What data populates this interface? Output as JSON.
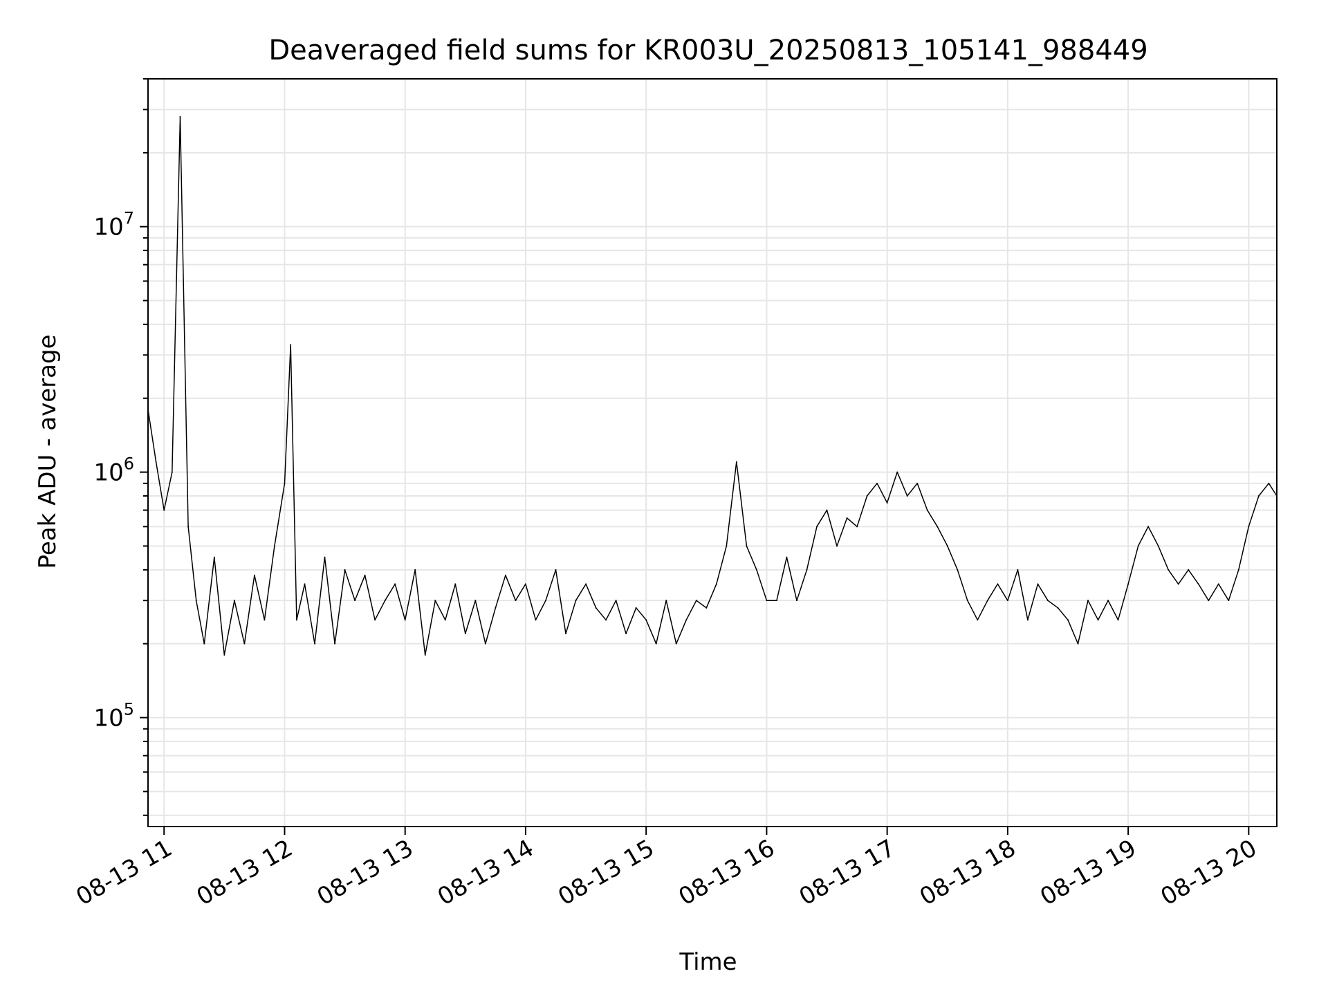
{
  "chart_data": {
    "type": "line",
    "title": "Deaveraged field sums for KR003U_20250813_105141_988449",
    "xlabel": "Time",
    "ylabel": "Peak ADU - average",
    "yscale": "log",
    "ylim": [
      36000,
      40000000
    ],
    "xlim": [
      "2025-08-13 10:52",
      "2025-08-13 20:14"
    ],
    "grid": true,
    "line_color": "#000000",
    "grid_color": "#e6e6e6",
    "x_ticks": [
      {
        "label": "08-13 11",
        "value": "2025-08-13 11:00"
      },
      {
        "label": "08-13 12",
        "value": "2025-08-13 12:00"
      },
      {
        "label": "08-13 13",
        "value": "2025-08-13 13:00"
      },
      {
        "label": "08-13 14",
        "value": "2025-08-13 14:00"
      },
      {
        "label": "08-13 15",
        "value": "2025-08-13 15:00"
      },
      {
        "label": "08-13 16",
        "value": "2025-08-13 16:00"
      },
      {
        "label": "08-13 17",
        "value": "2025-08-13 17:00"
      },
      {
        "label": "08-13 18",
        "value": "2025-08-13 18:00"
      },
      {
        "label": "08-13 19",
        "value": "2025-08-13 19:00"
      },
      {
        "label": "08-13 20",
        "value": "2025-08-13 20:00"
      }
    ],
    "y_ticks": [
      {
        "base": "10",
        "exp": "5",
        "value": 100000
      },
      {
        "base": "10",
        "exp": "6",
        "value": 1000000
      },
      {
        "base": "10",
        "exp": "7",
        "value": 10000000
      }
    ],
    "series": [
      {
        "points": [
          [
            "10:52",
            1800000
          ],
          [
            "10:56",
            1100000
          ],
          [
            "11:00",
            700000
          ],
          [
            "11:04",
            1000000
          ],
          [
            "11:08",
            28000000
          ],
          [
            "11:12",
            600000
          ],
          [
            "11:16",
            300000
          ],
          [
            "11:20",
            200000
          ],
          [
            "11:25",
            450000
          ],
          [
            "11:30",
            180000
          ],
          [
            "11:35",
            300000
          ],
          [
            "11:40",
            200000
          ],
          [
            "11:45",
            380000
          ],
          [
            "11:50",
            250000
          ],
          [
            "11:55",
            500000
          ],
          [
            "12:00",
            900000
          ],
          [
            "12:03",
            3300000
          ],
          [
            "12:06",
            250000
          ],
          [
            "12:10",
            350000
          ],
          [
            "12:15",
            200000
          ],
          [
            "12:20",
            450000
          ],
          [
            "12:25",
            200000
          ],
          [
            "12:30",
            400000
          ],
          [
            "12:35",
            300000
          ],
          [
            "12:40",
            380000
          ],
          [
            "12:45",
            250000
          ],
          [
            "12:50",
            300000
          ],
          [
            "12:55",
            350000
          ],
          [
            "13:00",
            250000
          ],
          [
            "13:05",
            400000
          ],
          [
            "13:10",
            180000
          ],
          [
            "13:15",
            300000
          ],
          [
            "13:20",
            250000
          ],
          [
            "13:25",
            350000
          ],
          [
            "13:30",
            220000
          ],
          [
            "13:35",
            300000
          ],
          [
            "13:40",
            200000
          ],
          [
            "13:45",
            280000
          ],
          [
            "13:50",
            380000
          ],
          [
            "13:55",
            300000
          ],
          [
            "14:00",
            350000
          ],
          [
            "14:05",
            250000
          ],
          [
            "14:10",
            300000
          ],
          [
            "14:15",
            400000
          ],
          [
            "14:20",
            220000
          ],
          [
            "14:25",
            300000
          ],
          [
            "14:30",
            350000
          ],
          [
            "14:35",
            280000
          ],
          [
            "14:40",
            250000
          ],
          [
            "14:45",
            300000
          ],
          [
            "14:50",
            220000
          ],
          [
            "14:55",
            280000
          ],
          [
            "15:00",
            250000
          ],
          [
            "15:05",
            200000
          ],
          [
            "15:10",
            300000
          ],
          [
            "15:15",
            200000
          ],
          [
            "15:20",
            250000
          ],
          [
            "15:25",
            300000
          ],
          [
            "15:30",
            280000
          ],
          [
            "15:35",
            350000
          ],
          [
            "15:40",
            500000
          ],
          [
            "15:45",
            1100000
          ],
          [
            "15:50",
            500000
          ],
          [
            "15:55",
            400000
          ],
          [
            "16:00",
            300000
          ],
          [
            "16:05",
            300000
          ],
          [
            "16:10",
            450000
          ],
          [
            "16:15",
            300000
          ],
          [
            "16:20",
            400000
          ],
          [
            "16:25",
            600000
          ],
          [
            "16:30",
            700000
          ],
          [
            "16:35",
            500000
          ],
          [
            "16:40",
            650000
          ],
          [
            "16:45",
            600000
          ],
          [
            "16:50",
            800000
          ],
          [
            "16:55",
            900000
          ],
          [
            "17:00",
            750000
          ],
          [
            "17:05",
            1000000
          ],
          [
            "17:10",
            800000
          ],
          [
            "17:15",
            900000
          ],
          [
            "17:20",
            700000
          ],
          [
            "17:25",
            600000
          ],
          [
            "17:30",
            500000
          ],
          [
            "17:35",
            400000
          ],
          [
            "17:40",
            300000
          ],
          [
            "17:45",
            250000
          ],
          [
            "17:50",
            300000
          ],
          [
            "17:55",
            350000
          ],
          [
            "18:00",
            300000
          ],
          [
            "18:05",
            400000
          ],
          [
            "18:10",
            250000
          ],
          [
            "18:15",
            350000
          ],
          [
            "18:20",
            300000
          ],
          [
            "18:25",
            280000
          ],
          [
            "18:30",
            250000
          ],
          [
            "18:35",
            200000
          ],
          [
            "18:40",
            300000
          ],
          [
            "18:45",
            250000
          ],
          [
            "18:50",
            300000
          ],
          [
            "18:55",
            250000
          ],
          [
            "19:00",
            350000
          ],
          [
            "19:05",
            500000
          ],
          [
            "19:10",
            600000
          ],
          [
            "19:15",
            500000
          ],
          [
            "19:20",
            400000
          ],
          [
            "19:25",
            350000
          ],
          [
            "19:30",
            400000
          ],
          [
            "19:35",
            350000
          ],
          [
            "19:40",
            300000
          ],
          [
            "19:45",
            350000
          ],
          [
            "19:50",
            300000
          ],
          [
            "19:55",
            400000
          ],
          [
            "20:00",
            600000
          ],
          [
            "20:05",
            800000
          ],
          [
            "20:10",
            900000
          ],
          [
            "20:14",
            800000
          ]
        ]
      }
    ]
  }
}
